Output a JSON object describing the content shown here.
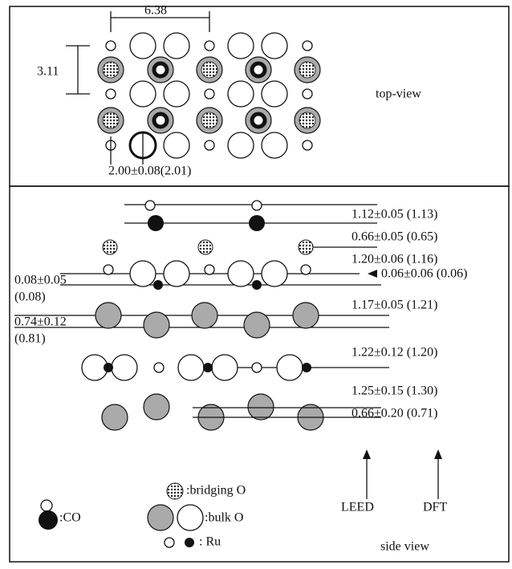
{
  "top_view": {
    "width_label": "6.38",
    "height_label": "3.11",
    "distance_label": "2.00±0.08(2.01)",
    "title": "top-view"
  },
  "side_view": {
    "right_labels": [
      "1.12±0.05 (1.13)",
      "0.66±0.05 (0.65)",
      "1.20±0.06 (1.16)",
      "0.06±0.06 (0.06)",
      "1.17±0.05 (1.21)",
      "1.22±0.12 (1.20)",
      "1.25±0.15 (1.30)",
      "0.66±0.20 (0.71)"
    ],
    "left_labels": [
      "0.08±0.05",
      "(0.08)",
      "0.74±0.12",
      "(0.81)"
    ],
    "arrows": [
      "LEED",
      "DFT"
    ],
    "legend": {
      "bridging": ":bridging O",
      "co": ":CO",
      "bulk": ":bulk O",
      "ru": ": Ru"
    },
    "title": "side view"
  }
}
